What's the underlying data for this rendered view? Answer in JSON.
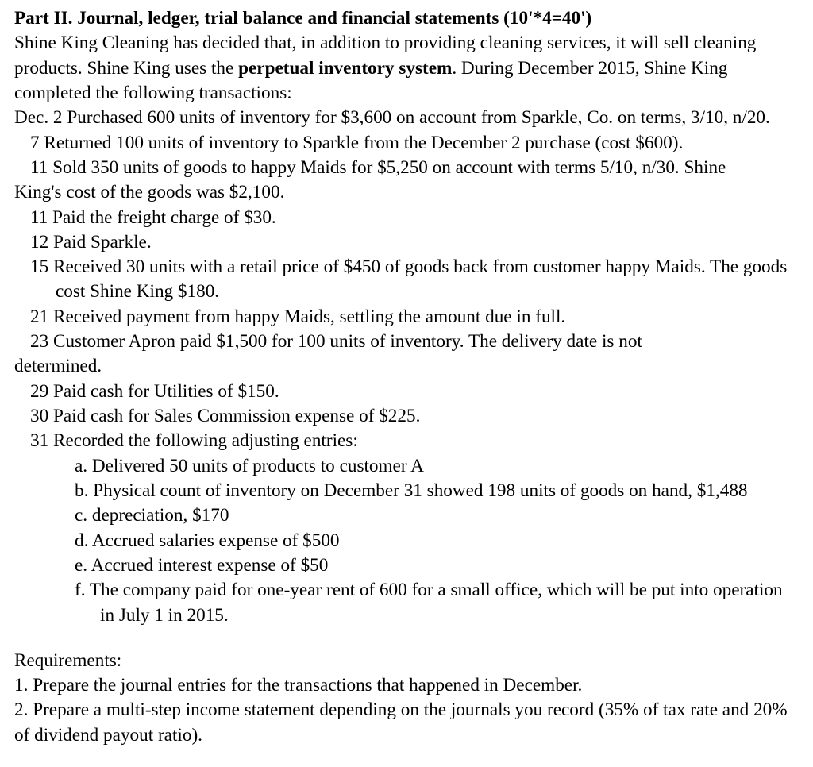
{
  "title_prefix": "Part II. Journal, ledger, trial balance and financial statements (10'*4=40')",
  "intro_a": "Shine King Cleaning has decided that, in addition to providing cleaning services, it will sell cleaning products. Shine King uses the ",
  "intro_bold": "perpetual inventory system",
  "intro_b": ". During December 2015, Shine King completed the following transactions:",
  "line_dec2": "Dec. 2 Purchased 600 units of inventory for $3,600 on account from Sparkle, Co. on terms, 3/10, n/20.",
  "line_7": "7 Returned 100 units of inventory to Sparkle from the December 2 purchase (cost $600).",
  "line_11a_pre": "11 Sold 350 units of goods to happy Maids for $5,250 on account with terms 5/10, n/30. Shine",
  "line_11a_post": "King's cost of the goods was $2,100.",
  "line_11b": "11 Paid the freight charge of $30.",
  "line_12": "12 Paid Sparkle.",
  "line_15": "15 Received 30 units with a retail price of $450 of goods back from customer happy Maids. The goods cost Shine King $180.",
  "line_21": "21 Received payment from happy Maids, settling the amount due in full.",
  "line_23_pre": "23 Customer Apron paid $1,500 for 100 units of inventory. The delivery date is not",
  "line_23_post": "determined.",
  "line_29": "29 Paid cash for Utilities of $150.",
  "line_30": "30 Paid cash for Sales Commission expense of $225.",
  "line_31": "31 Recorded the following adjusting entries:",
  "adj_a": "a. Delivered 50 units of products to customer A",
  "adj_b": "b. Physical count of inventory on December 31 showed 198 units of goods on hand, $1,488",
  "adj_c": "c. depreciation, $170",
  "adj_d": "d. Accrued salaries expense of $500",
  "adj_e": "e. Accrued interest expense of $50",
  "adj_f": "f. The company paid for one-year rent of 600 for a small office, which will be put into operation in July 1 in 2015.",
  "req_header": "Requirements:",
  "req_1": "1. Prepare the journal entries for the transactions that happened in December.",
  "req_2": "2. Prepare a multi-step income statement depending on the journals you record (35% of tax rate and 20% of dividend payout ratio)."
}
